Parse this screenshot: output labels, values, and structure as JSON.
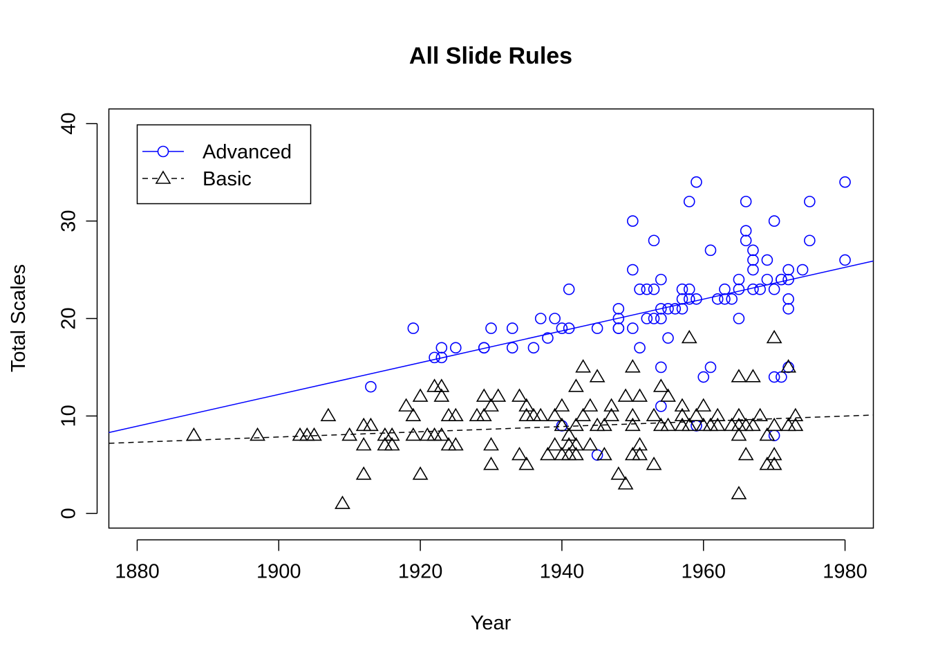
{
  "chart_data": {
    "type": "scatter",
    "title": "All Slide Rules",
    "xlabel": "Year",
    "ylabel": "Total Scales",
    "xlim": [
      1876,
      1984
    ],
    "ylim": [
      -1.5,
      41.5
    ],
    "x_ticks": [
      1880,
      1900,
      1920,
      1940,
      1960,
      1980
    ],
    "y_ticks": [
      0,
      10,
      20,
      30,
      40
    ],
    "grid": false,
    "legend_position": "top-left",
    "series": [
      {
        "name": "Advanced",
        "marker": "circle",
        "line": "solid",
        "color": "#0000FF",
        "points": [
          [
            1913,
            13
          ],
          [
            1919,
            19
          ],
          [
            1922,
            16
          ],
          [
            1923,
            17
          ],
          [
            1923,
            16
          ],
          [
            1925,
            17
          ],
          [
            1929,
            17
          ],
          [
            1929,
            17
          ],
          [
            1930,
            19
          ],
          [
            1933,
            19
          ],
          [
            1933,
            17
          ],
          [
            1936,
            17
          ],
          [
            1937,
            20
          ],
          [
            1938,
            18
          ],
          [
            1939,
            20
          ],
          [
            1940,
            19
          ],
          [
            1940,
            9
          ],
          [
            1941,
            19
          ],
          [
            1941,
            23
          ],
          [
            1945,
            19
          ],
          [
            1945,
            6
          ],
          [
            1948,
            21
          ],
          [
            1948,
            20
          ],
          [
            1948,
            19
          ],
          [
            1948,
            19
          ],
          [
            1950,
            30
          ],
          [
            1950,
            25
          ],
          [
            1950,
            19
          ],
          [
            1951,
            23
          ],
          [
            1951,
            17
          ],
          [
            1952,
            23
          ],
          [
            1952,
            20
          ],
          [
            1953,
            28
          ],
          [
            1953,
            23
          ],
          [
            1953,
            20
          ],
          [
            1954,
            24
          ],
          [
            1954,
            21
          ],
          [
            1954,
            20
          ],
          [
            1954,
            15
          ],
          [
            1954,
            11
          ],
          [
            1955,
            21
          ],
          [
            1955,
            18
          ],
          [
            1956,
            21
          ],
          [
            1957,
            23
          ],
          [
            1957,
            22
          ],
          [
            1957,
            21
          ],
          [
            1958,
            32
          ],
          [
            1958,
            23
          ],
          [
            1958,
            22
          ],
          [
            1959,
            34
          ],
          [
            1959,
            22
          ],
          [
            1959,
            9
          ],
          [
            1960,
            14
          ],
          [
            1961,
            27
          ],
          [
            1961,
            15
          ],
          [
            1962,
            22
          ],
          [
            1963,
            23
          ],
          [
            1963,
            22
          ],
          [
            1964,
            22
          ],
          [
            1965,
            24
          ],
          [
            1965,
            23
          ],
          [
            1965,
            20
          ],
          [
            1966,
            32
          ],
          [
            1966,
            29
          ],
          [
            1966,
            28
          ],
          [
            1967,
            27
          ],
          [
            1967,
            26
          ],
          [
            1967,
            25
          ],
          [
            1967,
            23
          ],
          [
            1968,
            23
          ],
          [
            1969,
            26
          ],
          [
            1969,
            24
          ],
          [
            1970,
            30
          ],
          [
            1970,
            23
          ],
          [
            1970,
            14
          ],
          [
            1970,
            8
          ],
          [
            1971,
            24
          ],
          [
            1971,
            24
          ],
          [
            1971,
            14
          ],
          [
            1972,
            25
          ],
          [
            1972,
            24
          ],
          [
            1972,
            22
          ],
          [
            1972,
            21
          ],
          [
            1972,
            15
          ],
          [
            1974,
            25
          ],
          [
            1975,
            32
          ],
          [
            1975,
            28
          ],
          [
            1980,
            34
          ],
          [
            1980,
            26
          ]
        ],
        "trend": [
          [
            1876,
            8.3
          ],
          [
            1984,
            25.9
          ]
        ]
      },
      {
        "name": "Basic",
        "marker": "triangle",
        "line": "dashed",
        "color": "#000000",
        "points": [
          [
            1888,
            8
          ],
          [
            1897,
            8
          ],
          [
            1903,
            8
          ],
          [
            1904,
            8
          ],
          [
            1905,
            8
          ],
          [
            1907,
            10
          ],
          [
            1909,
            1
          ],
          [
            1910,
            8
          ],
          [
            1912,
            9
          ],
          [
            1912,
            7
          ],
          [
            1912,
            4
          ],
          [
            1913,
            9
          ],
          [
            1915,
            8
          ],
          [
            1915,
            7
          ],
          [
            1916,
            8
          ],
          [
            1916,
            7
          ],
          [
            1918,
            11
          ],
          [
            1919,
            10
          ],
          [
            1919,
            8
          ],
          [
            1920,
            12
          ],
          [
            1920,
            4
          ],
          [
            1921,
            8
          ],
          [
            1922,
            13
          ],
          [
            1922,
            8
          ],
          [
            1923,
            13
          ],
          [
            1923,
            12
          ],
          [
            1923,
            8
          ],
          [
            1924,
            10
          ],
          [
            1924,
            7
          ],
          [
            1925,
            10
          ],
          [
            1925,
            7
          ],
          [
            1928,
            10
          ],
          [
            1929,
            12
          ],
          [
            1929,
            10
          ],
          [
            1930,
            11
          ],
          [
            1930,
            7
          ],
          [
            1930,
            5
          ],
          [
            1931,
            12
          ],
          [
            1934,
            12
          ],
          [
            1934,
            6
          ],
          [
            1935,
            11
          ],
          [
            1935,
            10
          ],
          [
            1935,
            5
          ],
          [
            1936,
            10
          ],
          [
            1937,
            10
          ],
          [
            1938,
            6
          ],
          [
            1939,
            10
          ],
          [
            1939,
            7
          ],
          [
            1940,
            11
          ],
          [
            1940,
            9
          ],
          [
            1940,
            6
          ],
          [
            1941,
            8
          ],
          [
            1941,
            7
          ],
          [
            1941,
            6
          ],
          [
            1942,
            13
          ],
          [
            1942,
            9
          ],
          [
            1942,
            7
          ],
          [
            1942,
            6
          ],
          [
            1943,
            15
          ],
          [
            1943,
            10
          ],
          [
            1944,
            11
          ],
          [
            1944,
            7
          ],
          [
            1945,
            14
          ],
          [
            1945,
            9
          ],
          [
            1946,
            9
          ],
          [
            1946,
            6
          ],
          [
            1947,
            11
          ],
          [
            1947,
            10
          ],
          [
            1948,
            4
          ],
          [
            1949,
            12
          ],
          [
            1949,
            3
          ],
          [
            1950,
            15
          ],
          [
            1950,
            10
          ],
          [
            1950,
            9
          ],
          [
            1950,
            6
          ],
          [
            1951,
            12
          ],
          [
            1951,
            7
          ],
          [
            1951,
            6
          ],
          [
            1953,
            10
          ],
          [
            1953,
            5
          ],
          [
            1954,
            13
          ],
          [
            1954,
            9
          ],
          [
            1955,
            12
          ],
          [
            1955,
            9
          ],
          [
            1957,
            11
          ],
          [
            1957,
            10
          ],
          [
            1957,
            9
          ],
          [
            1958,
            18
          ],
          [
            1958,
            9
          ],
          [
            1959,
            10
          ],
          [
            1960,
            11
          ],
          [
            1960,
            9
          ],
          [
            1961,
            9
          ],
          [
            1962,
            10
          ],
          [
            1962,
            9
          ],
          [
            1964,
            9
          ],
          [
            1965,
            14
          ],
          [
            1965,
            10
          ],
          [
            1965,
            9
          ],
          [
            1965,
            8
          ],
          [
            1965,
            2
          ],
          [
            1966,
            9
          ],
          [
            1966,
            6
          ],
          [
            1967,
            14
          ],
          [
            1967,
            9
          ],
          [
            1968,
            10
          ],
          [
            1969,
            8
          ],
          [
            1969,
            5
          ],
          [
            1970,
            18
          ],
          [
            1970,
            9
          ],
          [
            1970,
            6
          ],
          [
            1970,
            5
          ],
          [
            1972,
            15
          ],
          [
            1972,
            9
          ],
          [
            1973,
            10
          ],
          [
            1973,
            9
          ]
        ],
        "trend": [
          [
            1876,
            7.2
          ],
          [
            1984,
            10.1
          ]
        ]
      }
    ]
  }
}
